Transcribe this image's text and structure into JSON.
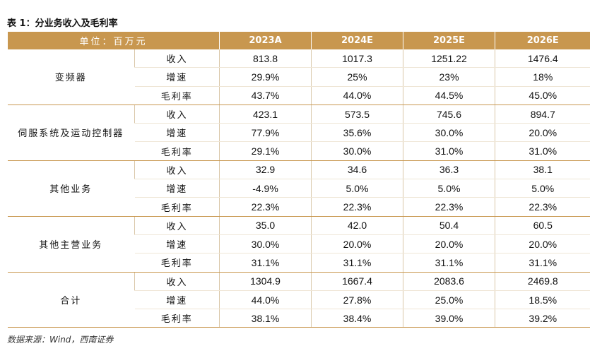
{
  "title": "表 1：分业务收入及毛利率",
  "table": {
    "header": [
      "单位：百万元",
      "2023A",
      "2024E",
      "2025E",
      "2026E"
    ],
    "groups": [
      {
        "name": "变频器",
        "rows": [
          {
            "metric": "收入",
            "values": [
              "813.8",
              "1017.3",
              "1251.22",
              "1476.4"
            ]
          },
          {
            "metric": "增速",
            "values": [
              "29.9%",
              "25%",
              "23%",
              "18%"
            ]
          },
          {
            "metric": "毛利率",
            "values": [
              "43.7%",
              "44.0%",
              "44.5%",
              "45.0%"
            ]
          }
        ]
      },
      {
        "name": "伺服系统及运动控制器",
        "rows": [
          {
            "metric": "收入",
            "values": [
              "423.1",
              "573.5",
              "745.6",
              "894.7"
            ]
          },
          {
            "metric": "增速",
            "values": [
              "77.9%",
              "35.6%",
              "30.0%",
              "20.0%"
            ]
          },
          {
            "metric": "毛利率",
            "values": [
              "29.1%",
              "30.0%",
              "31.0%",
              "31.0%"
            ]
          }
        ]
      },
      {
        "name": "其他业务",
        "rows": [
          {
            "metric": "收入",
            "values": [
              "32.9",
              "34.6",
              "36.3",
              "38.1"
            ]
          },
          {
            "metric": "增速",
            "values": [
              "-4.9%",
              "5.0%",
              "5.0%",
              "5.0%"
            ]
          },
          {
            "metric": "毛利率",
            "values": [
              "22.3%",
              "22.3%",
              "22.3%",
              "22.3%"
            ]
          }
        ]
      },
      {
        "name": "其他主营业务",
        "rows": [
          {
            "metric": "收入",
            "values": [
              "35.0",
              "42.0",
              "50.4",
              "60.5"
            ]
          },
          {
            "metric": "增速",
            "values": [
              "30.0%",
              "20.0%",
              "20.0%",
              "20.0%"
            ]
          },
          {
            "metric": "毛利率",
            "values": [
              "31.1%",
              "31.1%",
              "31.1%",
              "31.1%"
            ]
          }
        ]
      },
      {
        "name": "合计",
        "rows": [
          {
            "metric": "收入",
            "values": [
              "1304.9",
              "1667.4",
              "2083.6",
              "2469.8"
            ]
          },
          {
            "metric": "增速",
            "values": [
              "44.0%",
              "27.8%",
              "25.0%",
              "18.5%"
            ]
          },
          {
            "metric": "毛利率",
            "values": [
              "38.1%",
              "38.4%",
              "39.0%",
              "39.2%"
            ]
          }
        ]
      }
    ]
  },
  "source": "数据来源：Wind，西南证券"
}
